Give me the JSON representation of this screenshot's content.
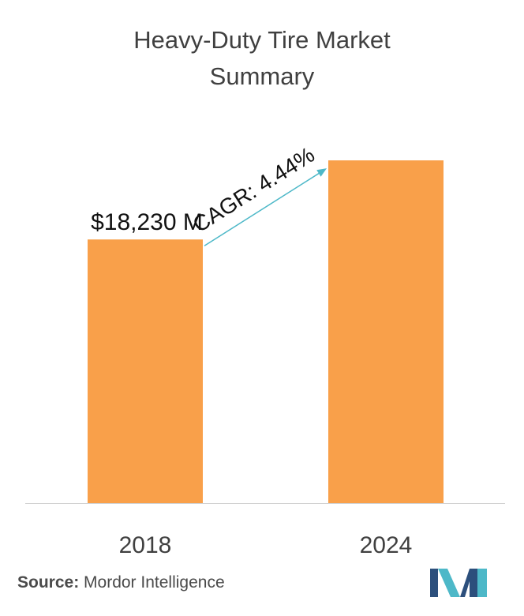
{
  "title_line1": "Heavy-Duty Tire Market",
  "title_line2": "Summary",
  "chart_data": {
    "type": "bar",
    "title": "Heavy-Duty Tire Market Summary",
    "categories": [
      "2018",
      "2024"
    ],
    "values": [
      18230,
      23700
    ],
    "data_labels": [
      "$18,230 M",
      ""
    ],
    "annotation": "CAGR: 4.44%",
    "ylim": [
      0,
      27800
    ],
    "grid": false,
    "legend": "none",
    "bar_color": "#F9A04A",
    "arrow_color": "#4DB8C8",
    "axis_color": "#d0d0d0"
  },
  "source": {
    "label": "Source:",
    "text": "Mordor Intelligence"
  },
  "logo": {
    "icon": "mordor-intelligence-logo-icon",
    "colors": [
      "#2C4F7C",
      "#4DB8C8"
    ]
  }
}
